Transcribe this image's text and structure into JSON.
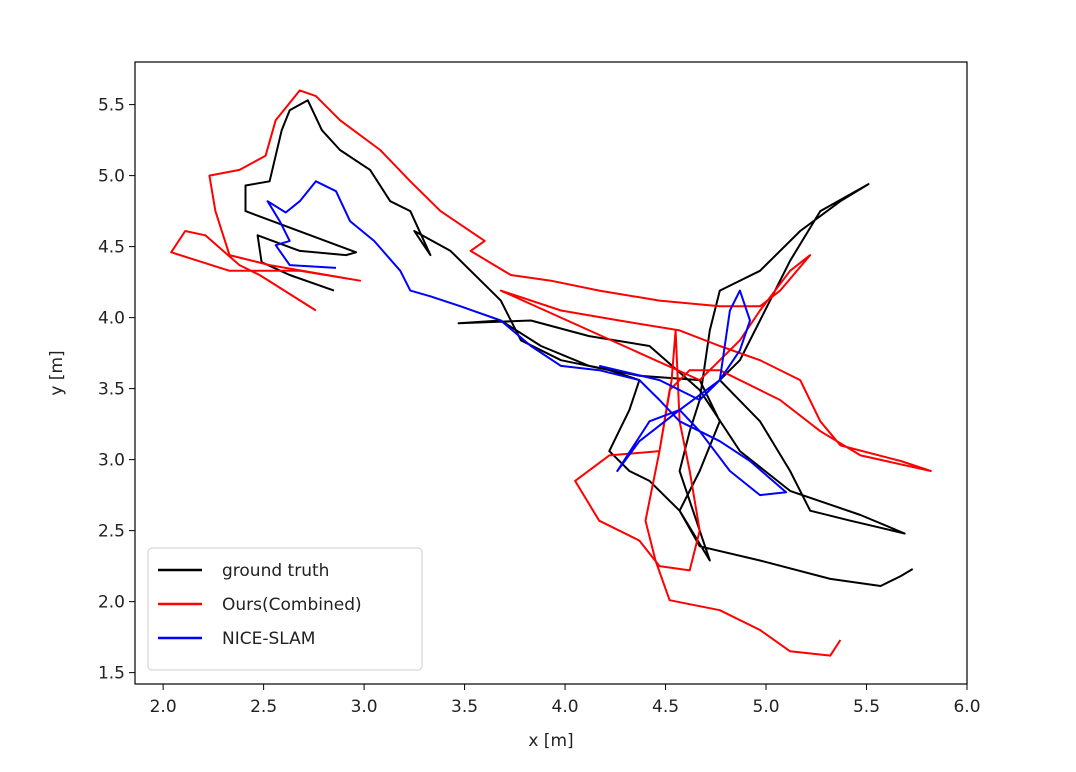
{
  "chart_data": {
    "type": "line",
    "xlabel": "x [m]",
    "ylabel": "y [m]",
    "xlim": [
      1.86,
      6.0
    ],
    "ylim": [
      1.42,
      5.8
    ],
    "xticks": [
      {
        "value": 2,
        "label": "2.0"
      },
      2.5,
      {
        "value": 3,
        "label": "3.0"
      },
      3.5,
      {
        "value": 4,
        "label": "4.0"
      },
      4.5,
      {
        "value": 5,
        "label": "5.0"
      },
      5.5,
      {
        "value": 6,
        "label": "6.0"
      }
    ],
    "yticks": [
      1.5,
      {
        "value": 2,
        "label": "2.0"
      },
      2.5,
      {
        "value": 3,
        "label": "3.0"
      },
      3.5,
      {
        "value": 4,
        "label": "4.0"
      },
      4.5,
      {
        "value": 5,
        "label": "5.0"
      },
      5.5
    ],
    "grid": false,
    "legend": "lower left",
    "series": [
      {
        "name": "ground truth",
        "color": "#000000",
        "x": [
          2.85,
          2.63,
          2.49,
          2.47,
          2.68,
          2.91,
          2.96,
          2.41,
          2.41,
          2.53,
          2.59,
          2.63,
          2.72,
          2.79,
          2.88,
          3.03,
          3.13,
          3.23,
          3.33,
          3.25,
          3.43,
          3.58,
          3.68,
          3.78,
          3.98,
          4.22,
          4.37,
          4.32,
          4.22,
          4.32,
          4.42,
          4.57,
          4.72,
          4.57,
          4.62,
          4.67,
          4.72,
          4.77,
          4.97,
          5.17,
          5.37,
          5.51,
          5.27,
          5.12,
          4.97,
          4.87,
          4.77,
          4.97,
          5.12,
          5.22,
          5.42,
          5.69,
          5.47,
          5.12,
          4.87,
          4.67,
          4.42,
          4.12,
          3.83,
          3.47,
          3.68,
          3.88,
          4.12,
          4.37,
          4.67,
          4.77,
          4.67,
          4.57,
          4.67,
          4.97,
          5.32,
          5.57,
          5.67,
          5.73
        ],
        "values": [
          4.19,
          4.3,
          4.39,
          4.58,
          4.47,
          4.44,
          4.46,
          4.75,
          4.93,
          4.96,
          5.32,
          5.46,
          5.53,
          5.32,
          5.18,
          5.04,
          4.82,
          4.75,
          4.44,
          4.61,
          4.47,
          4.26,
          4.12,
          3.84,
          3.7,
          3.63,
          3.56,
          3.35,
          3.06,
          2.92,
          2.85,
          2.64,
          2.29,
          2.92,
          3.2,
          3.42,
          3.91,
          4.19,
          4.33,
          4.61,
          4.82,
          4.94,
          4.75,
          4.4,
          3.98,
          3.7,
          3.56,
          3.27,
          2.92,
          2.64,
          2.57,
          2.48,
          2.61,
          2.78,
          3.06,
          3.49,
          3.8,
          3.87,
          3.98,
          3.96,
          3.98,
          3.8,
          3.66,
          3.59,
          3.56,
          3.27,
          2.92,
          2.64,
          2.39,
          2.29,
          2.16,
          2.11,
          2.18,
          2.23
        ]
      },
      {
        "name": "Ours(Combined)",
        "color": "#ff0000",
        "x": [
          2.76,
          2.48,
          2.38,
          2.21,
          2.11,
          2.04,
          2.33,
          2.68,
          2.98,
          2.53,
          2.33,
          2.26,
          2.23,
          2.38,
          2.51,
          2.56,
          2.68,
          2.76,
          2.88,
          3.08,
          3.23,
          3.38,
          3.6,
          3.53,
          3.73,
          3.93,
          4.17,
          4.47,
          4.77,
          4.97,
          5.07,
          5.22,
          5.12,
          4.97,
          4.87,
          4.67,
          3.68,
          3.98,
          4.27,
          4.57,
          4.77,
          4.97,
          5.17,
          5.27,
          5.37,
          5.67,
          5.82,
          5.47,
          5.27,
          5.07,
          4.77,
          4.62,
          4.52,
          4.47,
          4.22,
          4.05,
          4.17,
          4.37,
          4.47,
          4.62,
          4.67,
          4.62,
          4.57,
          4.55,
          4.53,
          4.47,
          4.4,
          4.45,
          4.52,
          4.77,
          4.97,
          5.12,
          5.32,
          5.37
        ],
        "values": [
          4.05,
          4.3,
          4.37,
          4.58,
          4.61,
          4.46,
          4.33,
          4.33,
          4.26,
          4.37,
          4.44,
          4.75,
          5.0,
          5.04,
          5.14,
          5.39,
          5.6,
          5.56,
          5.39,
          5.18,
          4.96,
          4.75,
          4.54,
          4.47,
          4.3,
          4.26,
          4.19,
          4.12,
          4.08,
          4.08,
          4.19,
          4.44,
          4.33,
          4.05,
          3.84,
          3.56,
          4.19,
          4.05,
          3.98,
          3.91,
          3.8,
          3.7,
          3.56,
          3.27,
          3.1,
          2.99,
          2.92,
          3.03,
          3.2,
          3.42,
          3.63,
          3.63,
          3.49,
          3.06,
          3.03,
          2.85,
          2.57,
          2.43,
          2.25,
          2.22,
          2.5,
          2.92,
          3.27,
          3.91,
          3.56,
          3.06,
          2.57,
          2.29,
          2.01,
          1.94,
          1.8,
          1.65,
          1.62,
          1.73
        ]
      },
      {
        "name": "NICE-SLAM",
        "color": "#0000ff",
        "x": [
          2.86,
          2.63,
          2.56,
          2.63,
          2.58,
          2.52,
          2.61,
          2.68,
          2.76,
          2.86,
          2.93,
          3.05,
          3.18,
          3.23,
          3.33,
          3.48,
          3.68,
          3.83,
          3.98,
          4.17,
          4.37,
          4.47,
          4.57,
          4.67,
          4.77,
          4.92,
          5.1,
          4.97,
          4.82,
          4.67,
          4.57,
          4.42,
          4.26,
          4.37,
          4.57,
          4.77,
          4.87,
          4.92,
          4.87,
          4.82,
          4.77,
          4.67,
          4.47,
          4.17
        ],
        "values": [
          4.35,
          4.37,
          4.51,
          4.54,
          4.68,
          4.82,
          4.74,
          4.82,
          4.96,
          4.89,
          4.68,
          4.54,
          4.33,
          4.19,
          4.15,
          4.08,
          3.98,
          3.8,
          3.66,
          3.63,
          3.56,
          3.42,
          3.27,
          3.2,
          3.13,
          2.99,
          2.77,
          2.75,
          2.92,
          3.2,
          3.35,
          3.27,
          2.92,
          3.13,
          3.35,
          3.56,
          3.77,
          3.98,
          4.19,
          4.05,
          3.56,
          3.42,
          3.56,
          3.66
        ]
      }
    ]
  }
}
